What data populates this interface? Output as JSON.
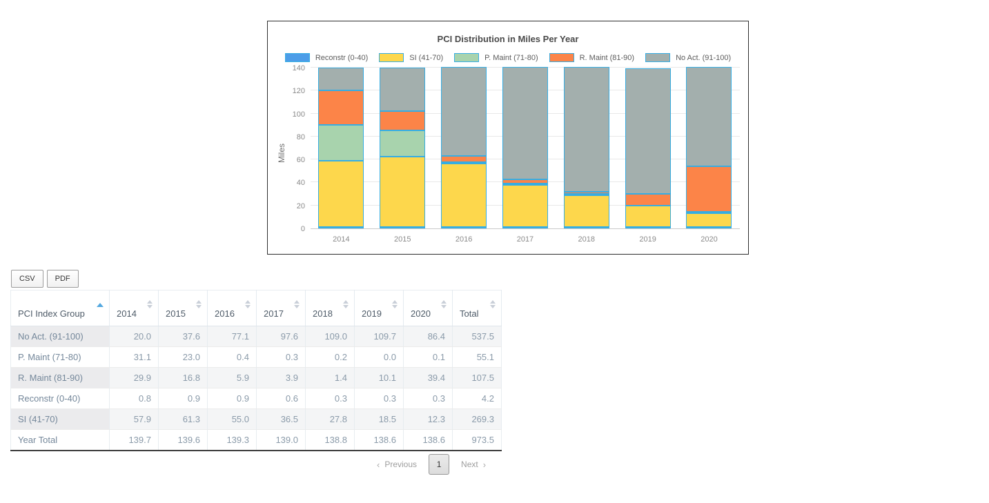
{
  "chart_data": {
    "type": "bar",
    "stacked": true,
    "title": "PCI Distribution in Miles Per Year",
    "ylabel": "Miles",
    "ylim": [
      0,
      140
    ],
    "yticks": [
      0,
      20,
      40,
      60,
      80,
      100,
      120,
      140
    ],
    "grid": true,
    "legend_position": "top",
    "categories": [
      "2014",
      "2015",
      "2016",
      "2017",
      "2018",
      "2019",
      "2020"
    ],
    "series": [
      {
        "name": "Reconstr (0-40)",
        "color": "#4c9de8",
        "values": [
          0.8,
          0.9,
          0.9,
          0.6,
          0.3,
          0.3,
          0.3
        ]
      },
      {
        "name": "SI (41-70)",
        "color": "#fdd74c",
        "values": [
          57.9,
          61.3,
          55.0,
          36.5,
          27.8,
          18.5,
          12.3
        ]
      },
      {
        "name": "P. Maint (71-80)",
        "color": "#a8d3ad",
        "values": [
          31.1,
          23.0,
          0.4,
          0.3,
          0.2,
          0.0,
          0.1
        ]
      },
      {
        "name": "R. Maint (81-90)",
        "color": "#fc8448",
        "values": [
          29.9,
          16.8,
          5.9,
          3.9,
          1.4,
          10.1,
          39.4
        ]
      },
      {
        "name": "No Act. (91-100)",
        "color": "#a3afad",
        "values": [
          20.0,
          37.6,
          77.1,
          97.6,
          109.0,
          109.7,
          86.4
        ]
      }
    ]
  },
  "toolbar": {
    "csv_label": "CSV",
    "pdf_label": "PDF"
  },
  "table": {
    "group_column_header": "PCI Index Group",
    "columns": [
      "2014",
      "2015",
      "2016",
      "2017",
      "2018",
      "2019",
      "2020",
      "Total"
    ],
    "sorted_column": "PCI Index Group",
    "sort_direction": "asc",
    "rows": [
      {
        "label": "No Act. (91-100)",
        "values": [
          "20.0",
          "37.6",
          "77.1",
          "97.6",
          "109.0",
          "109.7",
          "86.4",
          "537.5"
        ]
      },
      {
        "label": "P. Maint (71-80)",
        "values": [
          "31.1",
          "23.0",
          "0.4",
          "0.3",
          "0.2",
          "0.0",
          "0.1",
          "55.1"
        ]
      },
      {
        "label": "R. Maint (81-90)",
        "values": [
          "29.9",
          "16.8",
          "5.9",
          "3.9",
          "1.4",
          "10.1",
          "39.4",
          "107.5"
        ]
      },
      {
        "label": "Reconstr (0-40)",
        "values": [
          "0.8",
          "0.9",
          "0.9",
          "0.6",
          "0.3",
          "0.3",
          "0.3",
          "4.2"
        ]
      },
      {
        "label": "SI (41-70)",
        "values": [
          "57.9",
          "61.3",
          "55.0",
          "36.5",
          "27.8",
          "18.5",
          "12.3",
          "269.3"
        ]
      },
      {
        "label": "Year Total",
        "values": [
          "139.7",
          "139.6",
          "139.3",
          "139.0",
          "138.8",
          "138.6",
          "138.6",
          "973.5"
        ]
      }
    ]
  },
  "pagination": {
    "prev_arrow": "‹",
    "previous_label": "Previous",
    "current_page": "1",
    "next_label": "Next",
    "next_arrow": "›"
  }
}
